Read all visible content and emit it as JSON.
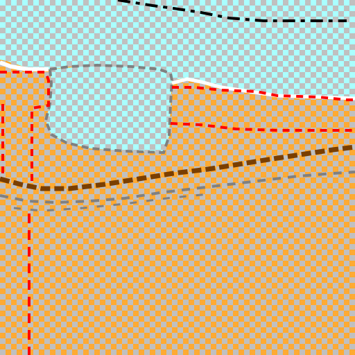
{
  "map": {
    "colors": {
      "checker_light": "#c0c0c0",
      "water": "#aaffff",
      "land": "#ffaa33",
      "boundary": "#ff0000",
      "track": "#7a3f00",
      "contour": "#808080",
      "shore": "#ffffff",
      "black_line": "#000000"
    },
    "icons": {
      "water": "lake-area",
      "land": "land-area",
      "boundary": "dashed-boundary-line",
      "track": "dirt-track-line"
    }
  }
}
